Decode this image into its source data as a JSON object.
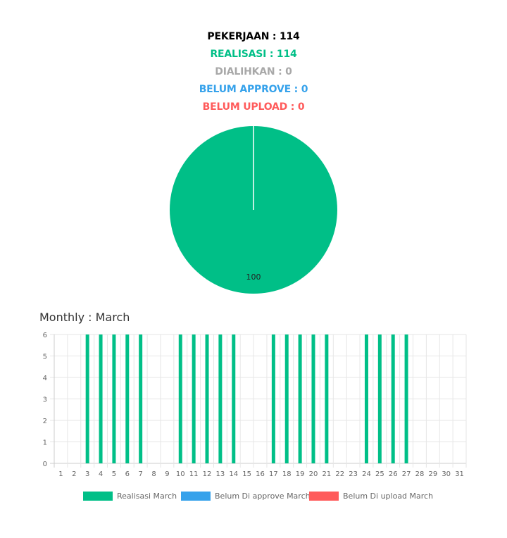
{
  "stats": {
    "pekerjaan": "PEKERJAAN : 114",
    "realisasi": "REALISASI : 114",
    "dialihkan": "DIALIHKAN : 0",
    "belum_approve": "BELUM APPROVE : 0",
    "belum_upload": "BELUM UPLOAD : 0"
  },
  "colors": {
    "pekerjaan": "#000000",
    "realisasi": "#00bf87",
    "dialihkan": "#a8a8a8",
    "belum_approve": "#36a2eb",
    "belum_upload": "#ff5b5b"
  },
  "monthly_title": "Monthly : March",
  "chart_data": [
    {
      "type": "pie",
      "slices": [
        {
          "value": 100,
          "color": "#00bf87"
        },
        {
          "value": 0,
          "color": "#36a2eb"
        },
        {
          "value": 0,
          "color": "#ff5b5b"
        }
      ],
      "data_label": "100"
    },
    {
      "type": "bar",
      "categories": [
        "1",
        "2",
        "3",
        "4",
        "5",
        "6",
        "7",
        "8",
        "9",
        "10",
        "11",
        "12",
        "13",
        "14",
        "15",
        "16",
        "17",
        "18",
        "19",
        "20",
        "21",
        "22",
        "23",
        "24",
        "25",
        "26",
        "27",
        "28",
        "29",
        "30",
        "31"
      ],
      "series": [
        {
          "name": "Realisasi March",
          "color": "#00bf87",
          "values": [
            0,
            0,
            6,
            6,
            6,
            6,
            6,
            0,
            0,
            6,
            6,
            6,
            6,
            6,
            0,
            0,
            6,
            6,
            6,
            6,
            6,
            0,
            0,
            6,
            6,
            6,
            6,
            0,
            0,
            0,
            0
          ]
        },
        {
          "name": "Belum Di approve March",
          "color": "#36a2eb",
          "values": [
            0,
            0,
            0,
            0,
            0,
            0,
            0,
            0,
            0,
            0,
            0,
            0,
            0,
            0,
            0,
            0,
            0,
            0,
            0,
            0,
            0,
            0,
            0,
            0,
            0,
            0,
            0,
            0,
            0,
            0,
            0
          ]
        },
        {
          "name": "Belum Di upload March",
          "color": "#ff5b5b",
          "values": [
            0,
            0,
            0,
            0,
            0,
            0,
            0,
            0,
            0,
            0,
            0,
            0,
            0,
            0,
            0,
            0,
            0,
            0,
            0,
            0,
            0,
            0,
            0,
            0,
            0,
            0,
            0,
            0,
            0,
            0,
            0
          ]
        }
      ],
      "yticks": [
        0,
        1,
        2,
        3,
        4,
        5,
        6
      ],
      "ylim": [
        0,
        6
      ],
      "grid": true,
      "legend_position": "bottom"
    }
  ]
}
